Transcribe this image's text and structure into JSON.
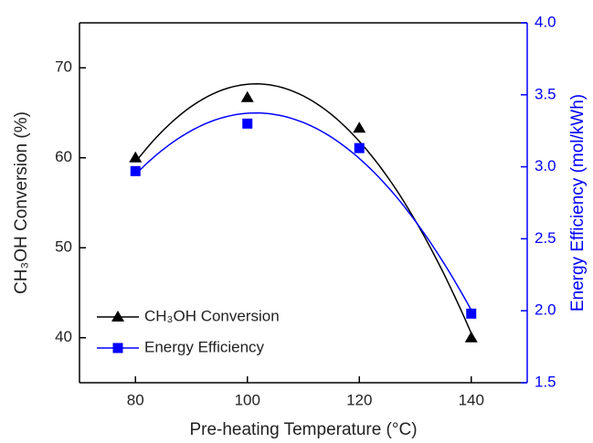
{
  "chart_data": {
    "type": "scatter",
    "x_label": "Pre-heating Temperature (°C)",
    "y_label": "CH₃OH Conversion (%)",
    "y2_label": "Energy Efficiency (mol/kWh)",
    "x": [
      80,
      100,
      120,
      140
    ],
    "series": [
      {
        "name": "CH₃OH Conversion",
        "color": "#000000",
        "marker": "triangle",
        "values": [
          60,
          66.7,
          63.3,
          40
        ]
      },
      {
        "name": "Energy Efficiency",
        "color": "#0000ff",
        "marker": "square",
        "axis": "y2",
        "values": [
          2.97,
          3.3,
          3.13,
          1.98
        ]
      }
    ],
    "xlim": [
      70,
      150
    ],
    "xticks": [
      80,
      100,
      120,
      140
    ],
    "ylim": [
      35,
      75
    ],
    "yticks": [
      40,
      50,
      60,
      70
    ],
    "y2lim": [
      1.5,
      4.0
    ],
    "y2ticks": [
      {
        "value": 1.5,
        "label": "1.5"
      },
      {
        "value": 2.0,
        "label": "2.0"
      },
      {
        "value": 2.5,
        "label": "2.5"
      },
      {
        "value": 3.0,
        "label": "3.0"
      },
      {
        "value": 3.5,
        "label": "3.5"
      },
      {
        "value": 4.0,
        "label": "4.0"
      }
    ],
    "legend": "lower left",
    "fit": "quadratic",
    "grid": false
  }
}
